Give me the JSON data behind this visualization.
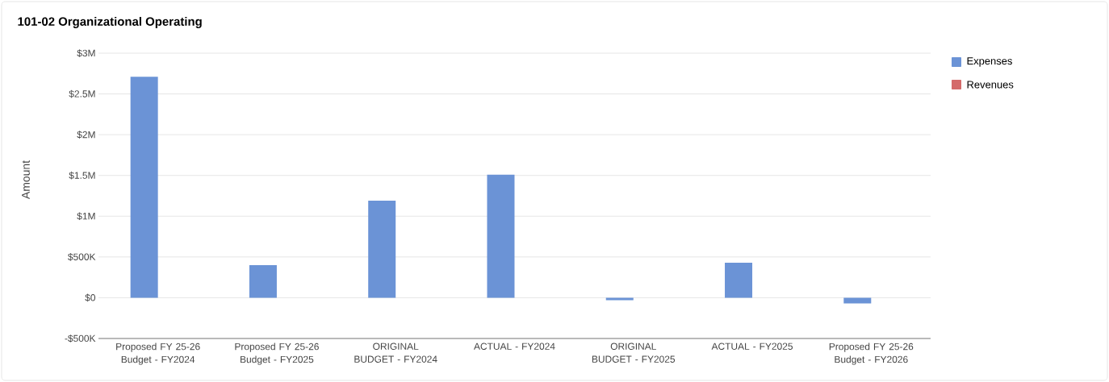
{
  "chart_data": {
    "type": "bar",
    "title": "101-02 Organizational Operating",
    "ylabel": "Amount",
    "categories": [
      "Proposed FY 25-26 Budget - FY2024",
      "Proposed FY 25-26 Budget - FY2025",
      "ORIGINAL BUDGET - FY2024",
      "ACTUAL - FY2024",
      "ORIGINAL BUDGET - FY2025",
      "ACTUAL - FY2025",
      "Proposed FY 25-26 Budget - FY2026"
    ],
    "series": [
      {
        "name": "Expenses",
        "color": "#6b93d6",
        "values": [
          2710000,
          400000,
          1190000,
          1510000,
          -30000,
          430000,
          -70000
        ]
      },
      {
        "name": "Revenues",
        "color": "#d46a6a",
        "values": [
          null,
          null,
          null,
          null,
          null,
          null,
          null
        ]
      }
    ],
    "ylim": [
      -500000,
      3000000
    ],
    "yticks": [
      {
        "value": -500000,
        "label": "-$500K"
      },
      {
        "value": 0,
        "label": "$0"
      },
      {
        "value": 500000,
        "label": "$500K"
      },
      {
        "value": 1000000,
        "label": "$1M"
      },
      {
        "value": 1500000,
        "label": "$1.5M"
      },
      {
        "value": 2000000,
        "label": "$2M"
      },
      {
        "value": 2500000,
        "label": "$2.5M"
      },
      {
        "value": 3000000,
        "label": "$3M"
      }
    ],
    "grid": "y",
    "legend": "top right"
  }
}
